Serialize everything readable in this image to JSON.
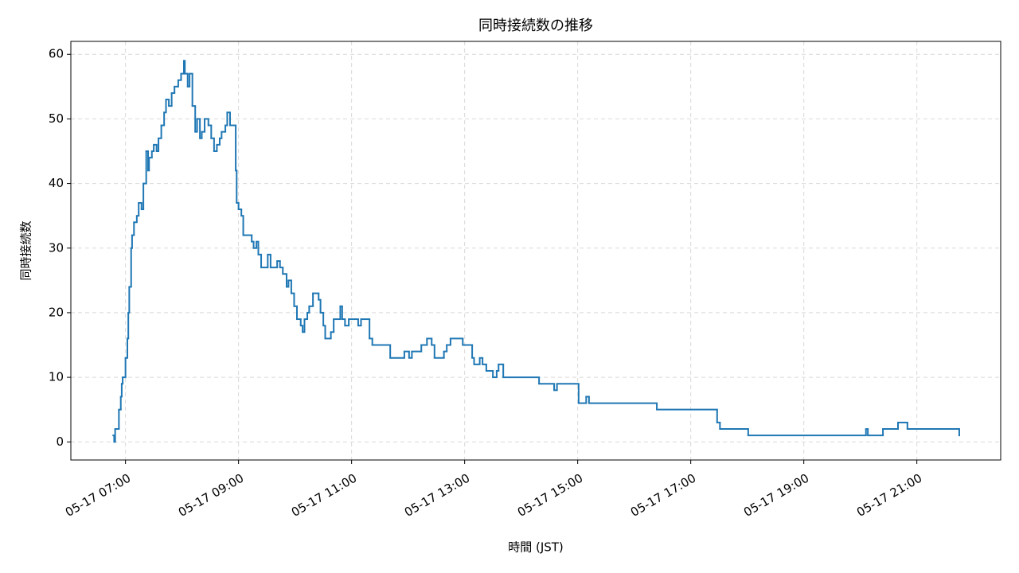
{
  "chart_data": {
    "type": "line",
    "drawstyle": "steps-post",
    "title": "同時接続数の推移",
    "x_label": "時間 (JST)",
    "y_label": "同時接続数",
    "series": [
      {
        "name": "同時接続数",
        "color": "#1f77b4",
        "x": [
          "05-17 06:47",
          "05-17 06:48",
          "05-17 06:49",
          "05-17 06:53",
          "05-17 06:55",
          "05-17 06:56",
          "05-17 06:57",
          "05-17 07:00",
          "05-17 07:02",
          "05-17 07:03",
          "05-17 07:04",
          "05-17 07:06",
          "05-17 07:07",
          "05-17 07:09",
          "05-17 07:12",
          "05-17 07:14",
          "05-17 07:17",
          "05-17 07:19",
          "05-17 07:22",
          "05-17 07:24",
          "05-17 07:25",
          "05-17 07:28",
          "05-17 07:30",
          "05-17 07:33",
          "05-17 07:35",
          "05-17 07:38",
          "05-17 07:41",
          "05-17 07:43",
          "05-17 07:46",
          "05-17 07:49",
          "05-17 07:52",
          "05-17 07:56",
          "05-17 07:59",
          "05-17 08:02",
          "05-17 08:03",
          "05-17 08:06",
          "05-17 08:08",
          "05-17 08:11",
          "05-17 08:14",
          "05-17 08:16",
          "05-17 08:19",
          "05-17 08:21",
          "05-17 08:24",
          "05-17 08:28",
          "05-17 08:31",
          "05-17 08:34",
          "05-17 08:37",
          "05-17 08:40",
          "05-17 08:42",
          "05-17 08:46",
          "05-17 08:48",
          "05-17 08:51",
          "05-17 08:57",
          "05-17 08:58",
          "05-17 09:00",
          "05-17 09:03",
          "05-17 09:05",
          "05-17 09:14",
          "05-17 09:16",
          "05-17 09:19",
          "05-17 09:21",
          "05-17 09:24",
          "05-17 09:31",
          "05-17 09:34",
          "05-17 09:41",
          "05-17 09:44",
          "05-17 09:47",
          "05-17 09:51",
          "05-17 09:53",
          "05-17 09:56",
          "05-17 09:59",
          "05-17 10:02",
          "05-17 10:06",
          "05-17 10:08",
          "05-17 10:10",
          "05-17 10:13",
          "05-17 10:15",
          "05-17 10:19",
          "05-17 10:25",
          "05-17 10:27",
          "05-17 10:30",
          "05-17 10:32",
          "05-17 10:38",
          "05-17 10:41",
          "05-17 10:48",
          "05-17 10:50",
          "05-17 10:53",
          "05-17 10:57",
          "05-17 11:07",
          "05-17 11:10",
          "05-17 11:19",
          "05-17 11:22",
          "05-17 11:41",
          "05-17 11:56",
          "05-17 12:01",
          "05-17 12:04",
          "05-17 12:14",
          "05-17 12:20",
          "05-17 12:25",
          "05-17 12:28",
          "05-17 12:38",
          "05-17 12:41",
          "05-17 12:45",
          "05-17 12:58",
          "05-17 13:08",
          "05-17 13:10",
          "05-17 13:16",
          "05-17 13:19",
          "05-17 13:23",
          "05-17 13:30",
          "05-17 13:34",
          "05-17 13:36",
          "05-17 13:41",
          "05-17 14:19",
          "05-17 14:35",
          "05-17 14:38",
          "05-17 15:01",
          "05-17 15:09",
          "05-17 15:12",
          "05-17 16:24",
          "05-17 17:28",
          "05-17 17:31",
          "05-17 18:01",
          "05-17 20:06",
          "05-17 20:08",
          "05-17 20:24",
          "05-17 20:40",
          "05-17 20:50",
          "05-17 21:45"
        ],
        "values": [
          1,
          0,
          2,
          5,
          7,
          9,
          10,
          13,
          16,
          20,
          24,
          30,
          32,
          34,
          35,
          37,
          36,
          40,
          45,
          42,
          44,
          45,
          46,
          45,
          47,
          49,
          51,
          53,
          52,
          54,
          55,
          56,
          57,
          59,
          57,
          55,
          57,
          52,
          48,
          50,
          47,
          48,
          50,
          49,
          47,
          45,
          46,
          47,
          48,
          49,
          51,
          49,
          42,
          37,
          36,
          35,
          32,
          31,
          30,
          31,
          29,
          27,
          29,
          27,
          28,
          27,
          26,
          24,
          25,
          23,
          21,
          19,
          18,
          17,
          19,
          20,
          21,
          23,
          22,
          20,
          18,
          16,
          17,
          19,
          21,
          19,
          18,
          19,
          18,
          19,
          16,
          15,
          13,
          14,
          13,
          14,
          15,
          16,
          15,
          13,
          14,
          15,
          16,
          15,
          13,
          12,
          13,
          12,
          11,
          10,
          11,
          12,
          10,
          9,
          8,
          9,
          6,
          7,
          6,
          5,
          3,
          2,
          1,
          2,
          1,
          2,
          3,
          2,
          1
        ]
      }
    ],
    "xlim": [
      "05-17 06:02",
      "05-17 22:29"
    ],
    "xticks": [
      "05-17 07:00",
      "05-17 09:00",
      "05-17 11:00",
      "05-17 13:00",
      "05-17 15:00",
      "05-17 17:00",
      "05-17 19:00",
      "05-17 21:00"
    ],
    "ylim": [
      -2.8,
      62
    ],
    "yticks": [
      0,
      10,
      20,
      30,
      40,
      50,
      60
    ],
    "grid": true
  }
}
